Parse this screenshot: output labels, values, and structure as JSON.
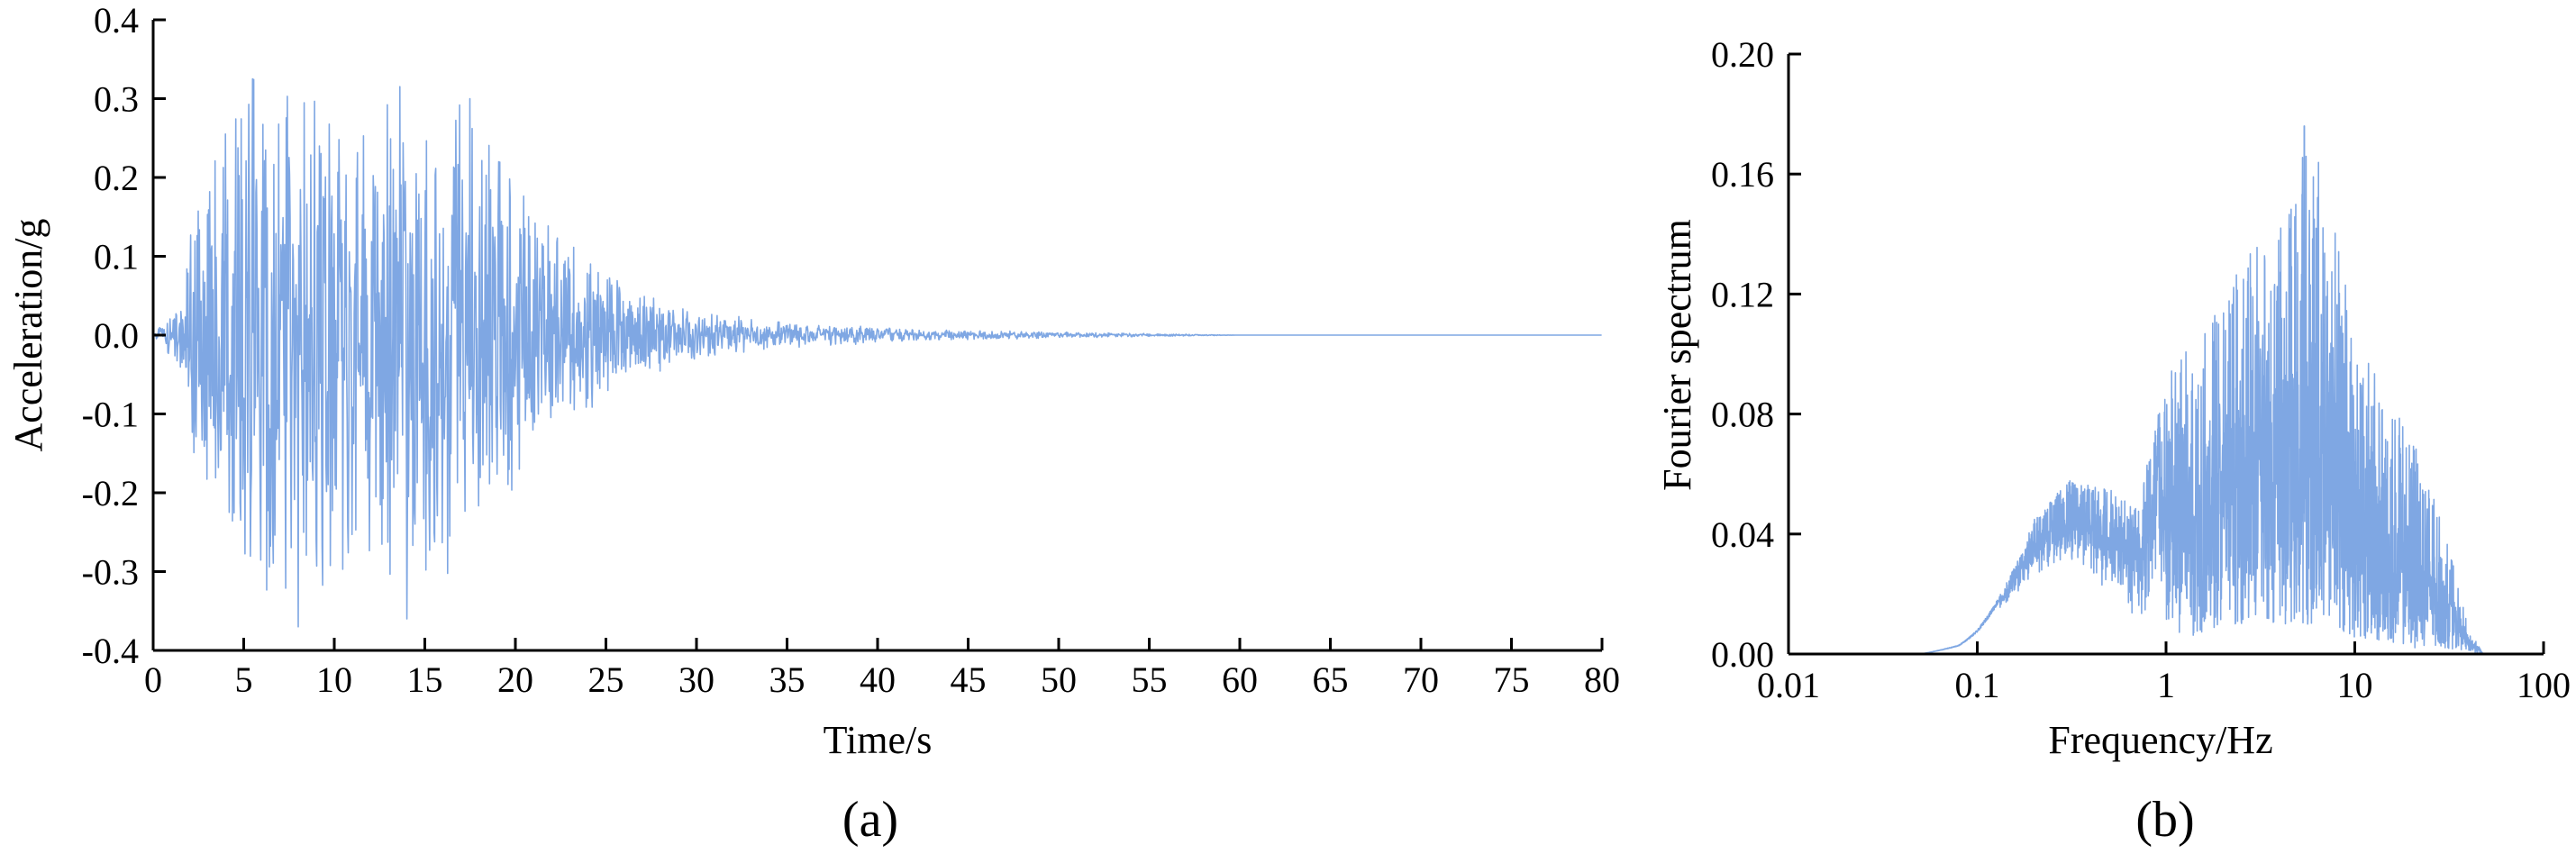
{
  "chart_data": [
    {
      "type": "line",
      "panel_label": "(a)",
      "xlabel": "Time/s",
      "ylabel": "Acceleration/g",
      "xlim": [
        0,
        80
      ],
      "ylim": [
        -0.4,
        0.4
      ],
      "xticks": [
        0,
        5,
        10,
        15,
        20,
        25,
        30,
        35,
        40,
        45,
        50,
        55,
        60,
        65,
        70,
        75,
        80
      ],
      "xtick_labels": [
        "0",
        "5",
        "10",
        "15",
        "20",
        "25",
        "30",
        "35",
        "40",
        "45",
        "50",
        "55",
        "60",
        "65",
        "70",
        "75",
        "80"
      ],
      "yticks": [
        -0.4,
        -0.3,
        -0.2,
        -0.1,
        0.0,
        0.1,
        0.2,
        0.3,
        0.4
      ],
      "ytick_labels": [
        "-0.4",
        "-0.3",
        "-0.2",
        "-0.1",
        "0.0",
        "0.1",
        "0.2",
        "0.3",
        "0.4"
      ],
      "grid": false,
      "series_color": "#7FA7E3",
      "envelope": {
        "t": [
          0,
          1,
          1.5,
          2,
          3,
          5,
          7,
          10,
          12,
          15,
          17,
          18,
          20,
          22,
          25,
          27,
          30,
          33,
          35,
          38,
          40,
          45,
          50,
          55,
          60,
          80
        ],
        "max_abs": [
          0.0,
          0.03,
          0.05,
          0.13,
          0.21,
          0.33,
          0.36,
          0.32,
          0.3,
          0.33,
          0.3,
          0.28,
          0.22,
          0.14,
          0.08,
          0.055,
          0.035,
          0.022,
          0.016,
          0.013,
          0.01,
          0.006,
          0.004,
          0.002,
          0.0,
          0.0
        ]
      },
      "peaks": [
        {
          "t": 5.5,
          "value": 0.325
        },
        {
          "t": 8.0,
          "value": -0.37
        },
        {
          "t": 14.0,
          "value": -0.36
        },
        {
          "t": 17.5,
          "value": 0.3
        }
      ]
    },
    {
      "type": "line",
      "panel_label": "(b)",
      "xlabel": "Frequency/Hz",
      "ylabel": "Fourier spectrum",
      "xscale": "log",
      "xlim": [
        0.01,
        100
      ],
      "ylim": [
        0.0,
        0.2
      ],
      "xticks": [
        0.01,
        0.1,
        1,
        10,
        100
      ],
      "xtick_labels": [
        "0.01",
        "0.1",
        "1",
        "10",
        "100"
      ],
      "yticks": [
        0.0,
        0.04,
        0.08,
        0.12,
        0.16,
        0.2
      ],
      "ytick_labels": [
        "0.00",
        "0.04",
        "0.08",
        "0.12",
        "0.16",
        "0.20"
      ],
      "grid": false,
      "series_color": "#7FA7E3",
      "envelope": {
        "f": [
          0.05,
          0.08,
          0.1,
          0.13,
          0.2,
          0.3,
          0.5,
          0.7,
          1.0,
          1.2,
          2.0,
          3.0,
          5.0,
          5.4,
          7.0,
          10.0,
          15.0,
          20.0,
          30.0,
          40.0,
          48.0
        ],
        "peak": [
          0.0,
          0.003,
          0.008,
          0.019,
          0.045,
          0.058,
          0.055,
          0.05,
          0.095,
          0.1,
          0.122,
          0.14,
          0.155,
          0.176,
          0.16,
          0.11,
          0.085,
          0.072,
          0.04,
          0.008,
          0.0
        ],
        "base": [
          0.0,
          0.002,
          0.006,
          0.015,
          0.025,
          0.03,
          0.02,
          0.01,
          0.005,
          0.005,
          0.01,
          0.01,
          0.01,
          0.01,
          0.008,
          0.005,
          0.003,
          0.002,
          0.002,
          0.001,
          0.0
        ]
      }
    }
  ]
}
